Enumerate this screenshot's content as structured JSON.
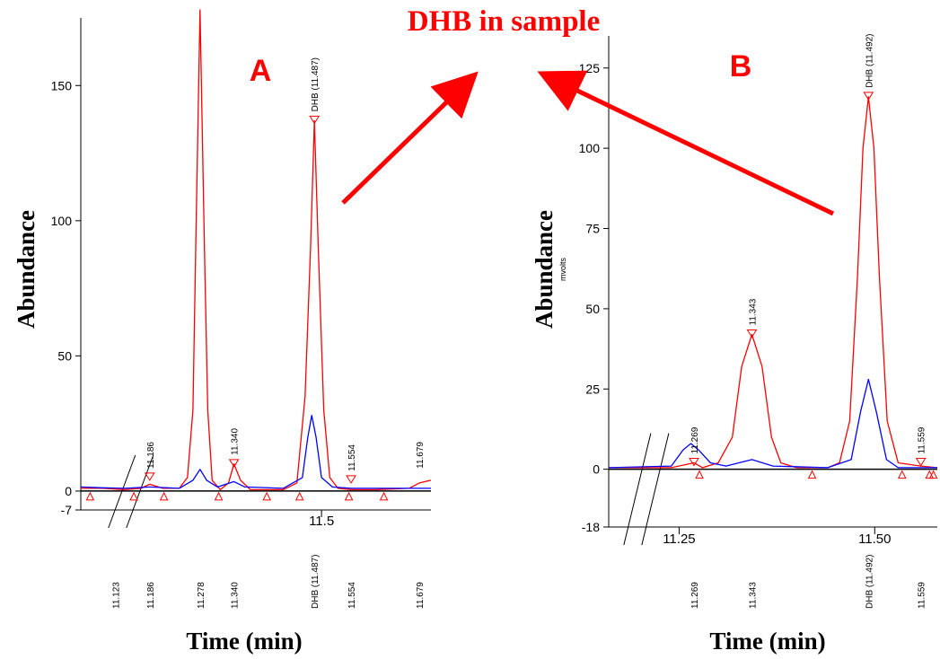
{
  "figure": {
    "title": "DHB in sample",
    "title_color": "#ff0000",
    "arrow_color": "#ff0000"
  },
  "chart_data": [
    {
      "type": "line",
      "panel_label": "A",
      "xlabel": "Time (min)",
      "ylabel": "Abundance",
      "xlim": [
        11.06,
        11.7
      ],
      "ylim": [
        -7,
        175
      ],
      "y_ticks": [
        0,
        50,
        100,
        150
      ],
      "y_extra_tick": -7,
      "x_ticks": [
        11.5
      ],
      "x_tick_labels": [
        "11.5"
      ],
      "axis_break_x": 11.14,
      "series": [
        {
          "color": "#ff0000",
          "points": [
            [
              11.06,
              1
            ],
            [
              11.1,
              1
            ],
            [
              11.14,
              0.5
            ],
            [
              11.17,
              1
            ],
            [
              11.186,
              2.5
            ],
            [
              11.21,
              1
            ],
            [
              11.24,
              1
            ],
            [
              11.255,
              5
            ],
            [
              11.265,
              30
            ],
            [
              11.27,
              90
            ],
            [
              11.278,
              178
            ],
            [
              11.286,
              90
            ],
            [
              11.292,
              30
            ],
            [
              11.3,
              4
            ],
            [
              11.315,
              0.5
            ],
            [
              11.33,
              3
            ],
            [
              11.34,
              10
            ],
            [
              11.352,
              4
            ],
            [
              11.37,
              0.5
            ],
            [
              11.41,
              0.5
            ],
            [
              11.43,
              0.5
            ],
            [
              11.455,
              3
            ],
            [
              11.47,
              35
            ],
            [
              11.48,
              90
            ],
            [
              11.487,
              137
            ],
            [
              11.494,
              90
            ],
            [
              11.504,
              30
            ],
            [
              11.515,
              5
            ],
            [
              11.53,
              1
            ],
            [
              11.554,
              0.5
            ],
            [
              11.6,
              0.5
            ],
            [
              11.66,
              1
            ],
            [
              11.679,
              3
            ],
            [
              11.7,
              4
            ]
          ]
        },
        {
          "color": "#0000ff",
          "points": [
            [
              11.06,
              1.5
            ],
            [
              11.1,
              1.2
            ],
            [
              11.14,
              1
            ],
            [
              11.186,
              1.5
            ],
            [
              11.24,
              1
            ],
            [
              11.265,
              4
            ],
            [
              11.278,
              8
            ],
            [
              11.29,
              4
            ],
            [
              11.31,
              1.5
            ],
            [
              11.34,
              3.5
            ],
            [
              11.36,
              1.5
            ],
            [
              11.43,
              1
            ],
            [
              11.465,
              5
            ],
            [
              11.475,
              20
            ],
            [
              11.482,
              28
            ],
            [
              11.49,
              20
            ],
            [
              11.5,
              5
            ],
            [
              11.52,
              1.5
            ],
            [
              11.554,
              1
            ],
            [
              11.7,
              1
            ]
          ]
        }
      ],
      "peak_labels": [
        {
          "text": "11.186",
          "x": 11.186,
          "y": 5,
          "marker": true
        },
        {
          "text": "11.340",
          "x": 11.34,
          "y": 10,
          "marker": true
        },
        {
          "text": "DHB (11.487)",
          "x": 11.487,
          "y": 137,
          "marker": true
        },
        {
          "text": "11.554",
          "x": 11.554,
          "y": 4,
          "marker": true
        },
        {
          "text": "11.679",
          "x": 11.679,
          "y": 5,
          "marker": false
        }
      ],
      "baseline_markers": [
        11.077,
        11.157,
        11.212,
        11.312,
        11.4,
        11.46,
        11.55,
        11.614
      ],
      "bottom_labels": [
        "11.123",
        "11.186",
        "11.278",
        "11.340",
        "DHB (11.487)",
        "11.554",
        "11.679"
      ],
      "bottom_label_x": [
        11.123,
        11.186,
        11.278,
        11.34,
        11.487,
        11.554,
        11.679
      ]
    },
    {
      "type": "line",
      "panel_label": "B",
      "xlabel": "Time (min)",
      "ylabel": "Abundance",
      "ylabel_small": "mvolts",
      "xlim": [
        11.16,
        11.58
      ],
      "ylim": [
        -18,
        135
      ],
      "y_ticks": [
        0,
        25,
        50,
        75,
        100,
        125
      ],
      "y_extra_tick": -18,
      "x_ticks": [
        11.25,
        11.5
      ],
      "x_tick_labels": [
        "11.25",
        "11.50"
      ],
      "axis_break_x": 11.2,
      "series": [
        {
          "color": "#ff0000",
          "points": [
            [
              11.16,
              0.5
            ],
            [
              11.24,
              0.5
            ],
            [
              11.269,
              2
            ],
            [
              11.28,
              0.5
            ],
            [
              11.3,
              2
            ],
            [
              11.318,
              10
            ],
            [
              11.33,
              32
            ],
            [
              11.343,
              42
            ],
            [
              11.356,
              32
            ],
            [
              11.368,
              10
            ],
            [
              11.38,
              2
            ],
            [
              11.4,
              0.5
            ],
            [
              11.44,
              0.5
            ],
            [
              11.455,
              2
            ],
            [
              11.468,
              15
            ],
            [
              11.478,
              60
            ],
            [
              11.485,
              100
            ],
            [
              11.492,
              116
            ],
            [
              11.499,
              100
            ],
            [
              11.506,
              60
            ],
            [
              11.516,
              15
            ],
            [
              11.53,
              2
            ],
            [
              11.559,
              1
            ],
            [
              11.58,
              0.5
            ]
          ]
        },
        {
          "color": "#0000ff",
          "points": [
            [
              11.16,
              0.5
            ],
            [
              11.24,
              1
            ],
            [
              11.255,
              6
            ],
            [
              11.265,
              8
            ],
            [
              11.275,
              6
            ],
            [
              11.29,
              2
            ],
            [
              11.31,
              1
            ],
            [
              11.343,
              3
            ],
            [
              11.37,
              1
            ],
            [
              11.44,
              0.5
            ],
            [
              11.47,
              3
            ],
            [
              11.482,
              18
            ],
            [
              11.492,
              28
            ],
            [
              11.502,
              18
            ],
            [
              11.515,
              3
            ],
            [
              11.53,
              0.5
            ],
            [
              11.58,
              0.5
            ]
          ]
        }
      ],
      "peak_labels": [
        {
          "text": "11.269",
          "x": 11.269,
          "y": 2,
          "marker": true
        },
        {
          "text": "11.343",
          "x": 11.343,
          "y": 42,
          "marker": true
        },
        {
          "text": "DHB (11.492)",
          "x": 11.492,
          "y": 116,
          "marker": true
        },
        {
          "text": "11.559",
          "x": 11.559,
          "y": 2,
          "marker": true
        }
      ],
      "baseline_markers": [
        11.276,
        11.42,
        11.535,
        11.57,
        11.575
      ],
      "bottom_labels": [
        "11.269",
        "11.343",
        "DHB (11.492)",
        "11.559"
      ],
      "bottom_label_x": [
        11.269,
        11.343,
        11.492,
        11.559
      ]
    }
  ]
}
